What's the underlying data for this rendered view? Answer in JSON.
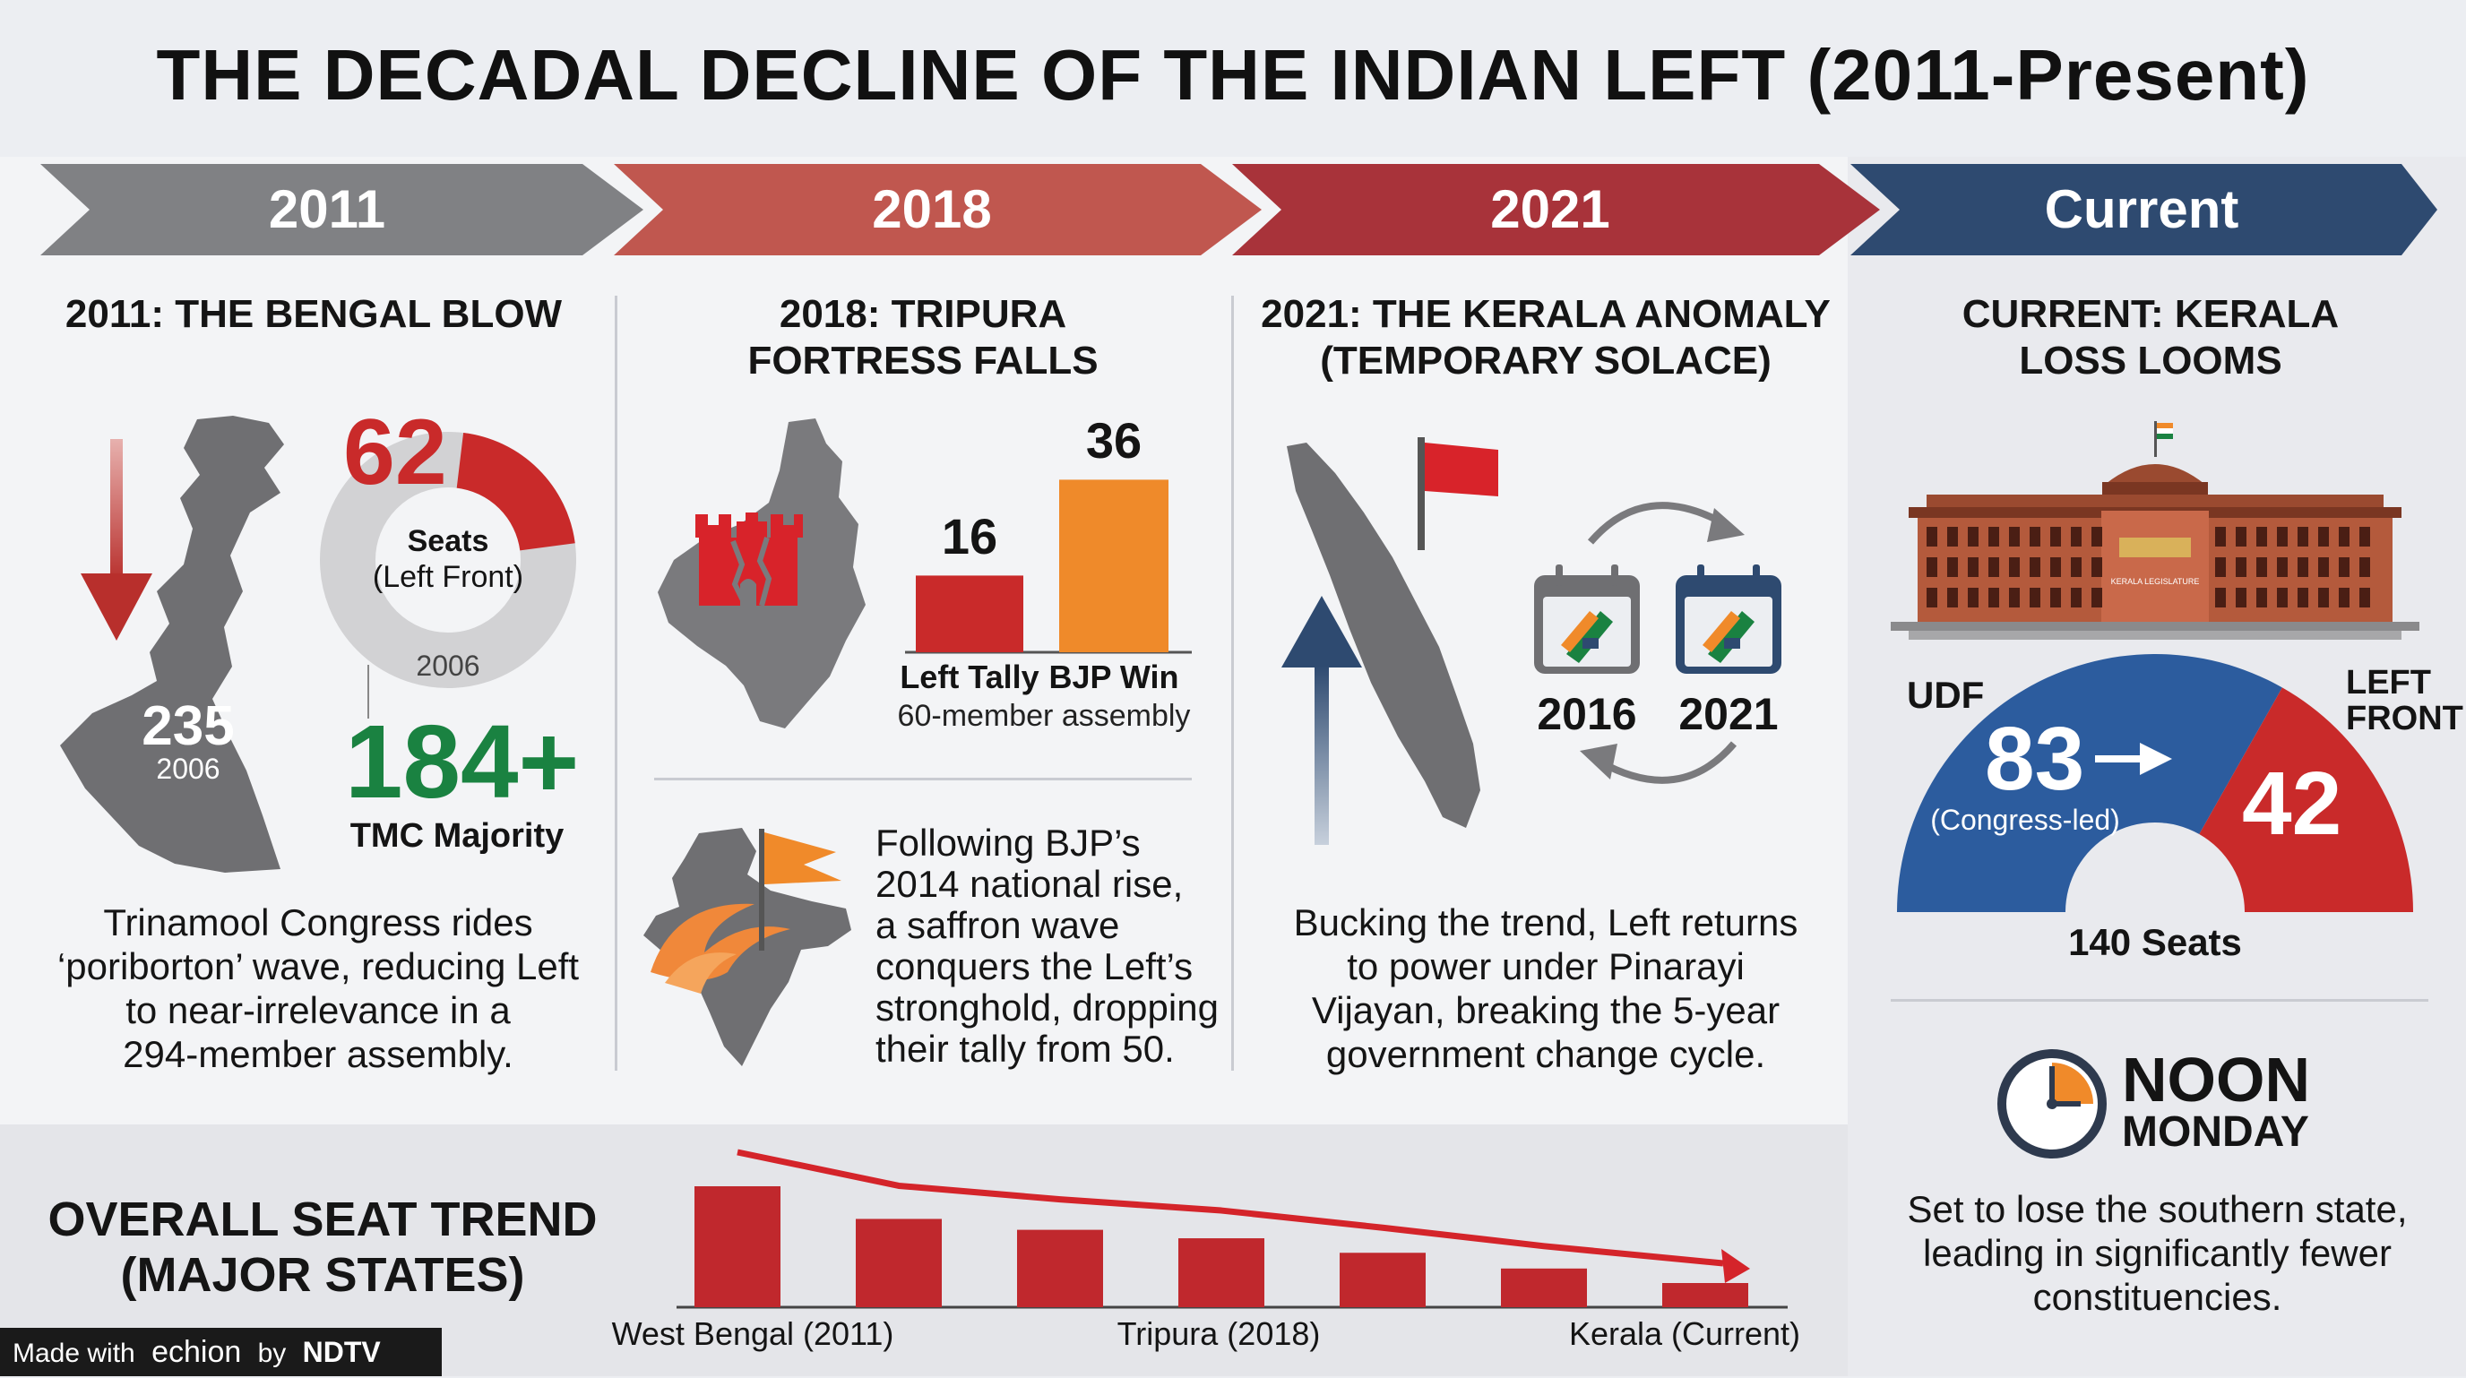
{
  "title": "THE DECADAL DECLINE OF THE INDIAN LEFT (2011-Present)",
  "timeline": [
    {
      "label": "2011",
      "color": "#808184"
    },
    {
      "label": "2018",
      "color": "#c0574f"
    },
    {
      "label": "2021",
      "color": "#a8333a"
    },
    {
      "label": "Current",
      "color": "#2e4a70"
    }
  ],
  "panel2011": {
    "heading": "2011: THE BENGAL BLOW",
    "seats_2011": "62",
    "donut_label_1": "Seats",
    "donut_label_2": "(Left Front)",
    "donut_year": "2006",
    "donut_fraction": 0.21,
    "seats_2006": "235",
    "seats_2006_year": "2006",
    "tmc_seats": "184+",
    "tmc_label": "TMC Majority",
    "body": [
      "Trinamool Congress rides",
      "‘poriborton’ wave, reducing Left",
      "to near-irrelevance in a",
      "294-member assembly."
    ]
  },
  "panel2018": {
    "heading_1": "2018: TRIPURA",
    "heading_2": "FORTRESS FALLS",
    "bars": [
      {
        "label": "Left Tally",
        "value": 16,
        "color": "#c92a2a"
      },
      {
        "label": "BJP Win",
        "value": 36,
        "color": "#ef8a2a"
      }
    ],
    "bar_caption": "60-member assembly",
    "body": [
      "Following BJP’s",
      "2014 national rise,",
      "a saffron wave",
      "conquers the Left’s",
      "stronghold, dropping",
      "their tally from 50."
    ]
  },
  "panel2021": {
    "heading_1": "2021: THE KERALA ANOMALY",
    "heading_2": "(TEMPORARY SOLACE)",
    "year_a": "2016",
    "year_b": "2021",
    "body": [
      "Bucking the trend, Left returns",
      "to power under Pinarayi",
      "Vijayan, breaking the 5-year",
      "government change cycle."
    ]
  },
  "panelCurrent": {
    "heading_1": "CURRENT: KERALA",
    "heading_2": "LOSS LOOMS",
    "building_sign": "KERALA LEGISLATURE",
    "udf_label": "UDF",
    "udf_seats": "83",
    "udf_sub": "(Congress-led)",
    "left_label_1": "LEFT",
    "left_label_2": "FRONT",
    "left_seats": "42",
    "total": "140 Seats",
    "clock_line_1": "NOON",
    "clock_line_2": "MONDAY",
    "body": [
      "Set to lose the southern state,",
      "leading in significantly fewer",
      "constituencies."
    ]
  },
  "trend": {
    "heading_1": "OVERALL SEAT TREND",
    "heading_2": "(MAJOR STATES)",
    "relative_heights": [
      1.0,
      0.73,
      0.64,
      0.57,
      0.45,
      0.32,
      0.2
    ],
    "axis_labels": [
      "West Bengal (2011)",
      "Tripura (2018)",
      "Kerala (Current)"
    ],
    "bar_color": "#c0282d"
  },
  "footer": {
    "made_with": "Made with",
    "brand": "echion",
    "by": "by",
    "network": "NDTV"
  }
}
